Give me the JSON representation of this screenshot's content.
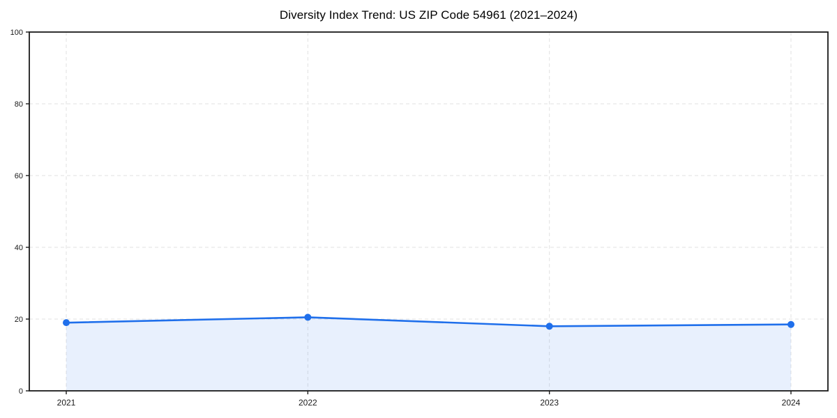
{
  "chart_data": {
    "type": "line",
    "title": "Diversity Index Trend: US ZIP Code 54961 (2021–2024)",
    "categories": [
      "2021",
      "2022",
      "2023",
      "2024"
    ],
    "series": [
      {
        "name": "Diversity Index",
        "values": [
          19.0,
          20.5,
          18.0,
          18.5
        ]
      }
    ],
    "xlabel": "",
    "ylabel": "",
    "ylim": [
      0,
      100
    ],
    "yticks": [
      0,
      20,
      40,
      60,
      80,
      100
    ],
    "grid": "dashed",
    "legend": "none",
    "area_fill": true,
    "marker": "circle",
    "colors": {
      "line": "#1f6feb",
      "marker": "#1f6feb",
      "fill": "#1f6feb",
      "fill_opacity": 0.1,
      "grid": "#e2e2e2",
      "axis": "#1a1a1a",
      "tick_label": "#1a1a1a",
      "title": "#000000",
      "background": "#ffffff"
    }
  }
}
